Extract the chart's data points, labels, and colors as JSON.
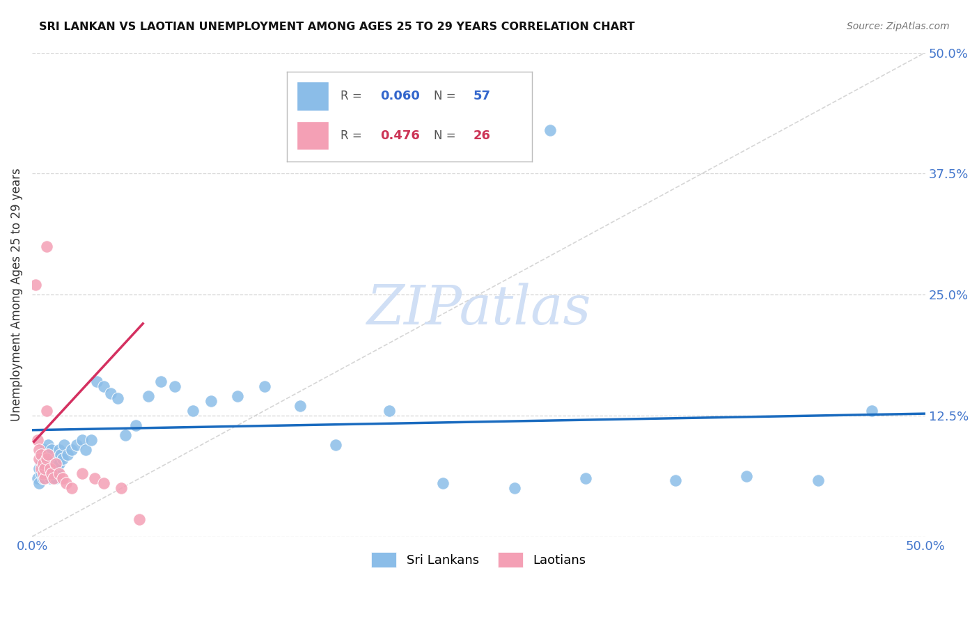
{
  "title": "SRI LANKAN VS LAOTIAN UNEMPLOYMENT AMONG AGES 25 TO 29 YEARS CORRELATION CHART",
  "source": "Source: ZipAtlas.com",
  "ylabel": "Unemployment Among Ages 25 to 29 years",
  "xlim": [
    0.0,
    0.5
  ],
  "ylim": [
    0.0,
    0.5
  ],
  "sri_lankan_color": "#8bbde8",
  "laotian_color": "#f4a0b5",
  "sri_lankan_trend_color": "#1a6bbf",
  "laotian_trend_color": "#d43060",
  "diagonal_color": "#cccccc",
  "watermark": "ZIPatlas",
  "watermark_color": "#d0dff5",
  "legend_sri_r": "0.060",
  "legend_sri_n": "57",
  "legend_lao_r": "0.476",
  "legend_lao_n": "26",
  "sri_blue_line": [
    [
      0.0,
      0.5
    ],
    [
      0.11,
      0.127
    ]
  ],
  "lao_pink_line": [
    [
      0.001,
      0.062
    ],
    [
      0.098,
      0.22
    ]
  ],
  "sri_x": [
    0.003,
    0.004,
    0.004,
    0.005,
    0.005,
    0.005,
    0.006,
    0.006,
    0.007,
    0.007,
    0.008,
    0.008,
    0.009,
    0.009,
    0.01,
    0.01,
    0.011,
    0.011,
    0.012,
    0.012,
    0.013,
    0.013,
    0.014,
    0.015,
    0.015,
    0.016,
    0.017,
    0.018,
    0.02,
    0.022,
    0.025,
    0.028,
    0.03,
    0.033,
    0.036,
    0.04,
    0.044,
    0.048,
    0.052,
    0.058,
    0.065,
    0.072,
    0.08,
    0.09,
    0.1,
    0.115,
    0.13,
    0.15,
    0.17,
    0.2,
    0.23,
    0.27,
    0.31,
    0.36,
    0.4,
    0.44,
    0.47
  ],
  "sri_y": [
    0.06,
    0.07,
    0.055,
    0.075,
    0.065,
    0.085,
    0.06,
    0.08,
    0.07,
    0.09,
    0.065,
    0.085,
    0.075,
    0.095,
    0.06,
    0.08,
    0.07,
    0.09,
    0.075,
    0.065,
    0.08,
    0.06,
    0.07,
    0.075,
    0.09,
    0.085,
    0.08,
    0.095,
    0.085,
    0.09,
    0.095,
    0.1,
    0.09,
    0.1,
    0.16,
    0.155,
    0.148,
    0.143,
    0.105,
    0.115,
    0.145,
    0.16,
    0.155,
    0.13,
    0.14,
    0.145,
    0.155,
    0.135,
    0.095,
    0.13,
    0.055,
    0.05,
    0.06,
    0.058,
    0.062,
    0.058,
    0.13
  ],
  "lao_x": [
    0.002,
    0.003,
    0.004,
    0.004,
    0.005,
    0.005,
    0.006,
    0.006,
    0.007,
    0.007,
    0.008,
    0.008,
    0.009,
    0.01,
    0.011,
    0.012,
    0.013,
    0.015,
    0.017,
    0.019,
    0.022,
    0.028,
    0.035,
    0.04,
    0.05,
    0.06
  ],
  "lao_y": [
    0.26,
    0.1,
    0.09,
    0.08,
    0.085,
    0.07,
    0.065,
    0.075,
    0.06,
    0.07,
    0.13,
    0.08,
    0.085,
    0.07,
    0.065,
    0.06,
    0.075,
    0.065,
    0.06,
    0.055,
    0.05,
    0.065,
    0.06,
    0.055,
    0.05,
    0.018
  ],
  "sri_outlier_x": [
    0.29
  ],
  "sri_outlier_y": [
    0.42
  ],
  "lao_outlier_x": [
    0.008
  ],
  "lao_outlier_y": [
    0.3
  ]
}
